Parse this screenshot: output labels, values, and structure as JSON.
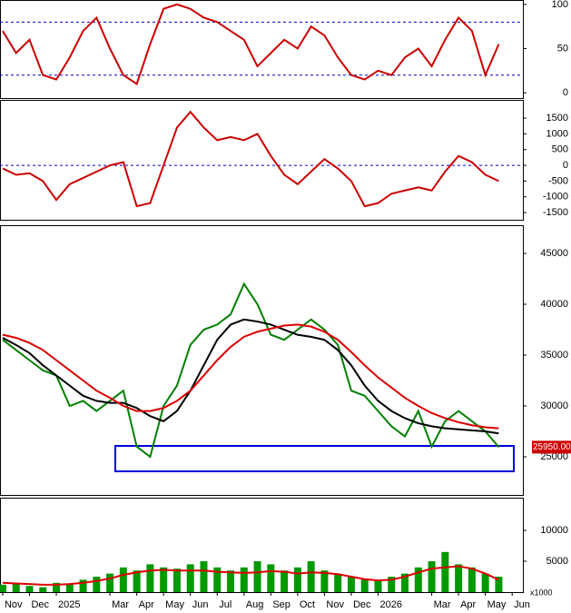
{
  "chart_data": [
    {
      "type": "line",
      "ylim": [
        -6,
        105
      ],
      "yticks": [
        0,
        50,
        100
      ],
      "hlines": [
        20,
        80
      ],
      "x": [
        0,
        0.5,
        1,
        1.5,
        2,
        2.5,
        3,
        3.5,
        4,
        4.5,
        5,
        5.5,
        6,
        6.5,
        7,
        7.5,
        8,
        8.5,
        9,
        9.5,
        10,
        10.5,
        11,
        11.5,
        12,
        12.5,
        13,
        13.5,
        14,
        14.5,
        15,
        15.5,
        16,
        16.5,
        17,
        17.5,
        18,
        18.5
      ],
      "series": [
        {
          "color": "#cc0000",
          "values": [
            70,
            45,
            60,
            20,
            15,
            40,
            70,
            85,
            50,
            20,
            10,
            55,
            95,
            100,
            95,
            85,
            80,
            70,
            60,
            30,
            45,
            60,
            50,
            75,
            65,
            40,
            20,
            15,
            25,
            20,
            40,
            50,
            30,
            60,
            85,
            70,
            20,
            55
          ]
        }
      ]
    },
    {
      "type": "line",
      "ylim": [
        -1730,
        2080
      ],
      "yticks": [
        -1500,
        -1000,
        -500,
        0,
        500,
        1000,
        1500
      ],
      "hlines": [
        0
      ],
      "x": [
        0,
        0.5,
        1,
        1.5,
        2,
        2.5,
        3,
        3.5,
        4,
        4.5,
        5,
        5.5,
        6,
        6.5,
        7,
        7.5,
        8,
        8.5,
        9,
        9.5,
        10,
        10.5,
        11,
        11.5,
        12,
        12.5,
        13,
        13.5,
        14,
        14.5,
        15,
        15.5,
        16,
        16.5,
        17,
        17.5,
        18,
        18.5
      ],
      "series": [
        {
          "color": "#cc0000",
          "values": [
            -100,
            -300,
            -250,
            -500,
            -1100,
            -600,
            -400,
            -200,
            0,
            100,
            -1300,
            -1200,
            0,
            1200,
            1700,
            1200,
            800,
            900,
            800,
            1000,
            300,
            -300,
            -600,
            -200,
            200,
            -100,
            -500,
            -1300,
            -1200,
            -900,
            -800,
            -700,
            -800,
            -200,
            300,
            100,
            -300,
            -500
          ]
        }
      ]
    },
    {
      "type": "line",
      "ylim": [
        21250,
        47770
      ],
      "yticks": [
        25000,
        30000,
        35000,
        40000,
        45000
      ],
      "last_label": "25950.00",
      "x": [
        0,
        0.5,
        1,
        1.5,
        2,
        2.5,
        3,
        3.5,
        4,
        4.5,
        5,
        5.5,
        6,
        6.5,
        7,
        7.5,
        8,
        8.5,
        9,
        9.5,
        10,
        10.5,
        11,
        11.5,
        12,
        12.5,
        13,
        13.5,
        14,
        14.5,
        15,
        15.5,
        16,
        16.5,
        17,
        17.5,
        18,
        18.5
      ],
      "series": [
        {
          "color": "#008000",
          "values": [
            36500,
            35500,
            34500,
            33500,
            33000,
            30000,
            30500,
            29500,
            30500,
            31500,
            26000,
            25000,
            30000,
            32000,
            36000,
            37500,
            38000,
            39000,
            42000,
            40000,
            37000,
            36500,
            37500,
            38500,
            37500,
            36000,
            31500,
            31000,
            29500,
            28000,
            27000,
            29500,
            26000,
            28500,
            29500,
            28500,
            27500,
            25950
          ]
        },
        {
          "color": "#000000",
          "values": [
            36700,
            36000,
            35200,
            34000,
            33000,
            32000,
            31000,
            30500,
            30300,
            30300,
            29800,
            29000,
            28500,
            29500,
            31500,
            34000,
            36500,
            38000,
            38500,
            38300,
            38000,
            37500,
            37000,
            36800,
            36500,
            35500,
            34000,
            32000,
            30500,
            29500,
            28800,
            28300,
            28000,
            27800,
            27700,
            27600,
            27500,
            27300
          ]
        },
        {
          "color": "#dd0000",
          "values": [
            37000,
            36700,
            36200,
            35500,
            34500,
            33500,
            32500,
            31500,
            30800,
            30000,
            29500,
            29500,
            29800,
            30500,
            31500,
            33000,
            34500,
            35800,
            36800,
            37300,
            37600,
            37900,
            38000,
            37800,
            37300,
            36500,
            35300,
            34000,
            32800,
            31800,
            30800,
            30000,
            29300,
            28800,
            28400,
            28100,
            27900,
            27800
          ]
        }
      ]
    },
    {
      "type": "bar",
      "ylim": [
        0,
        15300
      ],
      "yticks": [
        5000,
        10000
      ],
      "unit_label": "x1000",
      "xlim": [
        -0.1,
        19.4
      ],
      "xticks": [
        {
          "value": 0,
          "label": "Nov"
        },
        {
          "value": 1,
          "label": "Dec"
        },
        {
          "value": 2,
          "label": "2025"
        },
        {
          "value": 4,
          "label": "Mar"
        },
        {
          "value": 5,
          "label": "Apr"
        },
        {
          "value": 6,
          "label": "May"
        },
        {
          "value": 7,
          "label": "Jun"
        },
        {
          "value": 8,
          "label": "Jul"
        },
        {
          "value": 9,
          "label": "Aug"
        },
        {
          "value": 10,
          "label": "Sep"
        },
        {
          "value": 11,
          "label": "Oct"
        },
        {
          "value": 12,
          "label": "Nov"
        },
        {
          "value": 13,
          "label": "Dec"
        },
        {
          "value": 14,
          "label": "2026"
        },
        {
          "value": 16,
          "label": "Mar"
        },
        {
          "value": 17,
          "label": "Apr"
        },
        {
          "value": 18,
          "label": "May"
        },
        {
          "value": 19,
          "label": "Jun"
        }
      ],
      "x": [
        0,
        0.5,
        1,
        1.5,
        2,
        2.5,
        3,
        3.5,
        4,
        4.5,
        5,
        5.5,
        6,
        6.5,
        7,
        7.5,
        8,
        8.5,
        9,
        9.5,
        10,
        10.5,
        11,
        11.5,
        12,
        12.5,
        13,
        13.5,
        14,
        14.5,
        15,
        15.5,
        16,
        16.5,
        17,
        17.5,
        18,
        18.5
      ],
      "series": [
        {
          "type": "bar",
          "color": "#009900",
          "values": [
            1200,
            1500,
            1000,
            800,
            1500,
            1200,
            2000,
            2500,
            3000,
            4000,
            3500,
            4500,
            4000,
            3800,
            4500,
            5000,
            4000,
            3500,
            4000,
            5000,
            4500,
            3500,
            4000,
            5000,
            3500,
            3000,
            2500,
            2000,
            1800,
            2500,
            3000,
            4000,
            5000,
            6500,
            4500,
            4000,
            3000,
            2500
          ]
        },
        {
          "type": "line",
          "color": "#dd0000",
          "values": [
            1500,
            1400,
            1300,
            1200,
            1200,
            1300,
            1500,
            1800,
            2200,
            2800,
            3200,
            3500,
            3600,
            3500,
            3500,
            3500,
            3300,
            3200,
            3100,
            3200,
            3400,
            3300,
            3000,
            3200,
            3100,
            2900,
            2500,
            2100,
            1900,
            2000,
            2500,
            3200,
            3800,
            4000,
            4200,
            3800,
            3000,
            2000
          ]
        }
      ]
    }
  ]
}
